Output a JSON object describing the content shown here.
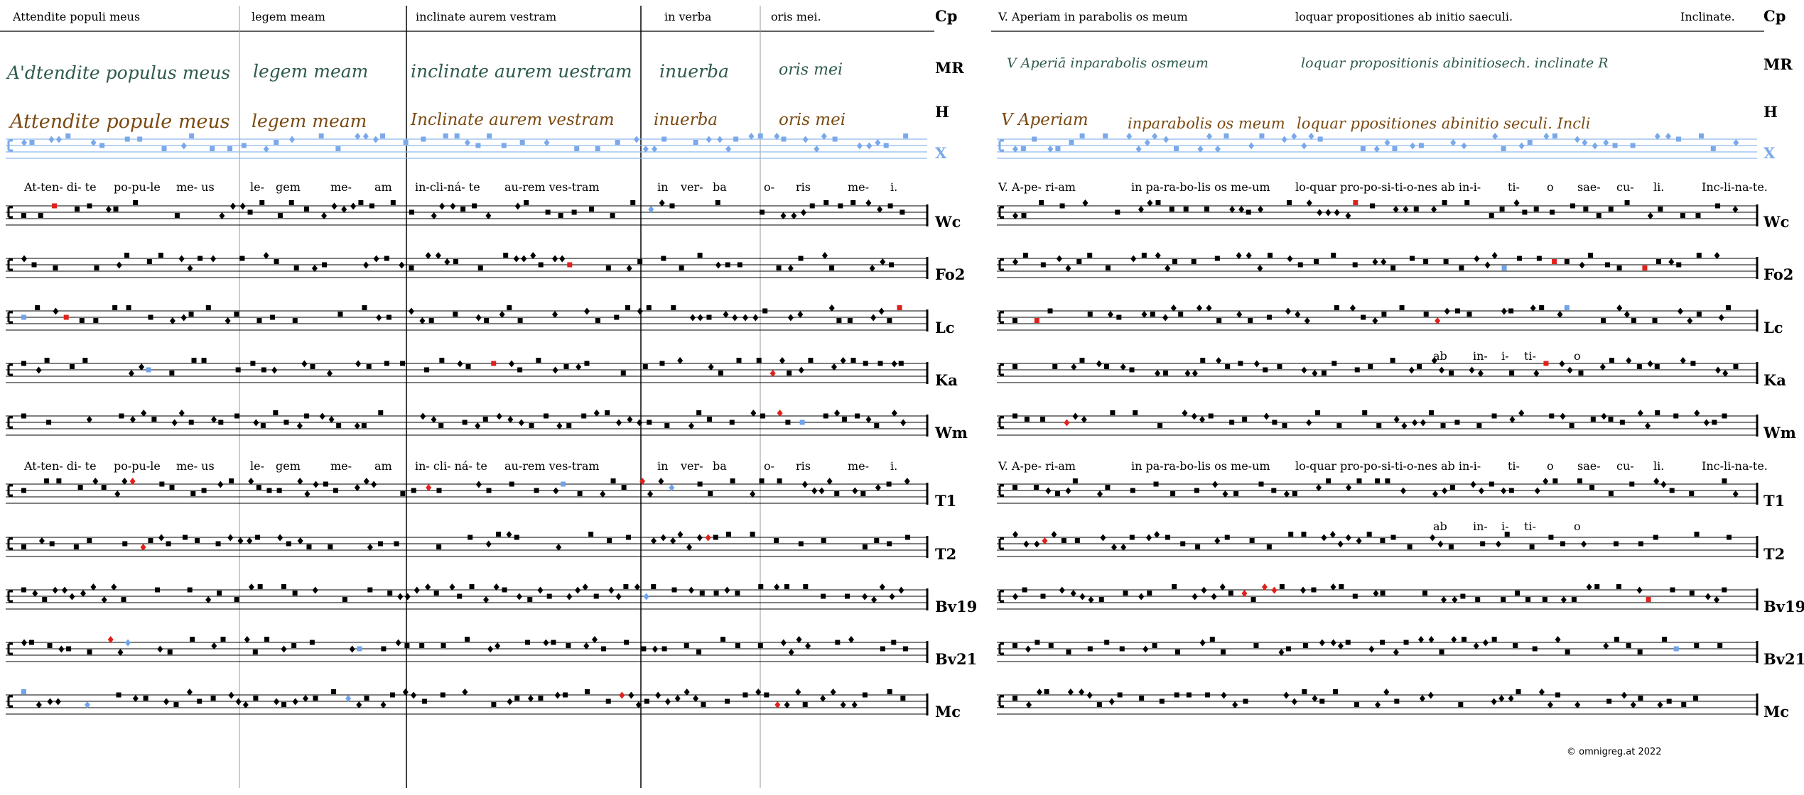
{
  "left": {
    "header_segments": [
      "Attendite populi meus",
      "legem meam",
      "inclinate aurem vestram",
      "in verba",
      "oris mei."
    ],
    "ms_green_segments": [
      "A'dtendite populus meus",
      "legem meam",
      "inclinate aurem uestram",
      "inuerba",
      "oris mei"
    ],
    "ms_brown_segments": [
      "Attendite popule meus",
      "legem meam",
      "Inclinate aurem vestram",
      "inuerba",
      "oris mei"
    ],
    "syllables_row1": [
      "At-ten- di- te",
      "po-pu-le",
      "me- us",
      "le-",
      "gem",
      "me-",
      "am",
      "in-cli-ná- te",
      "au-rem ves-tram",
      "in",
      "ver-",
      "ba",
      "o-",
      "ris",
      "me-",
      "i."
    ],
    "syllables_row2": [
      "At-ten- di- te",
      "po-pu-le",
      "me- us",
      "le-",
      "gem",
      "me-",
      "am",
      "in- cli- ná- te",
      "au-rem ves-tram",
      "in",
      "ver-",
      "ba",
      "o-",
      "ris",
      "me-",
      "i."
    ]
  },
  "right": {
    "header_segments": [
      "V. Aperiam in parabolis os meum",
      "loquar propositiones ab initio saeculi.",
      "Inclinate."
    ],
    "ms_green_segments": [
      "V Aperiā inparabolis osmeum",
      "loquar propositionis abinitiosech. inclinate R"
    ],
    "ms_brown_segments": [
      "V Aperiam",
      "inparabolis os meum",
      "loquar ppositiones abinitio seculi. Incli"
    ],
    "syllables_row1": [
      "V. A-pe- ri-am",
      "in pa-ra-bo-lis os me-um",
      "lo-quar pro-po-si-ti-o-nes ab in-i-",
      "ti-",
      "o",
      "sae-",
      "cu-",
      "li.",
      "Inc-li-na-te."
    ],
    "syllables_row2": [
      "V. A-pe- ri-am",
      "in pa-ra-bo-lis os me-um",
      "lo-quar pro-po-si-ti-o-nes ab in-i-",
      "ti-",
      "o",
      "sae-",
      "cu-",
      "li.",
      "Inc-li-na-te."
    ],
    "interlinear_ka": [
      "ab",
      "in-",
      "i-",
      "ti-",
      "o"
    ],
    "interlinear_t2": [
      "ab",
      "in-",
      "i-",
      "ti-",
      "o"
    ],
    "copyright": "©  omnigreg.at   2022"
  },
  "labels": [
    "Cp",
    "MR",
    "H",
    "X",
    "Wc",
    "Fo2",
    "Lc",
    "Ka",
    "Wm",
    "T1",
    "T2",
    "Bv19",
    "Bv21",
    "Mc"
  ],
  "colors": {
    "x_staff": "#8fb8ef",
    "x_notes": "#7aa9ea",
    "green_ms": "#2e5a4e",
    "brown_ms": "#7a4a12",
    "red": "#e0201a",
    "green_mark": "#5a8c5a",
    "blue_mark": "#6fa3ea",
    "grey": "#c8c8c8"
  }
}
